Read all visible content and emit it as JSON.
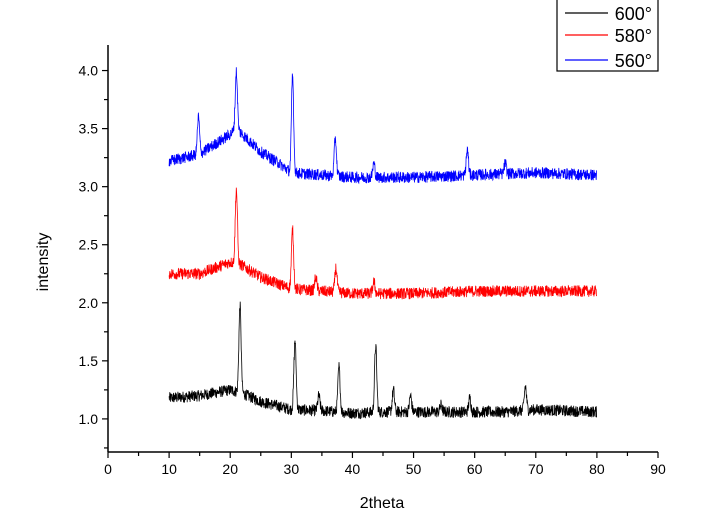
{
  "chart_data": {
    "type": "line",
    "title": "",
    "xlabel": "2theta",
    "ylabel": "intensity",
    "xlim": [
      0,
      90
    ],
    "ylim": [
      0.715,
      4.22
    ],
    "xticks": [
      "0",
      "10",
      "20",
      "30",
      "40",
      "50",
      "60",
      "70",
      "80",
      "90"
    ],
    "yticks": [
      "1.0",
      "1.5",
      "2.0",
      "2.5",
      "3.0",
      "3.5",
      "4.0"
    ],
    "legend_position": "top-right",
    "x_range_data": [
      10,
      80
    ],
    "series": [
      {
        "name": "600°",
        "color": "#000000",
        "baseline": [
          [
            10,
            1.18
          ],
          [
            15,
            1.2
          ],
          [
            20,
            1.25
          ],
          [
            22,
            1.22
          ],
          [
            25,
            1.15
          ],
          [
            30,
            1.08
          ],
          [
            35,
            1.07
          ],
          [
            40,
            1.05
          ],
          [
            45,
            1.06
          ],
          [
            50,
            1.06
          ],
          [
            60,
            1.06
          ],
          [
            65,
            1.06
          ],
          [
            70,
            1.08
          ],
          [
            75,
            1.07
          ],
          [
            80,
            1.06
          ]
        ],
        "peaks": [
          [
            21.6,
            1.98
          ],
          [
            30.6,
            1.68
          ],
          [
            34.5,
            1.2
          ],
          [
            37.8,
            1.45
          ],
          [
            43.8,
            1.63
          ],
          [
            46.7,
            1.25
          ],
          [
            49.5,
            1.2
          ],
          [
            54.5,
            1.12
          ],
          [
            59.2,
            1.18
          ],
          [
            68.3,
            1.28
          ]
        ]
      },
      {
        "name": "580°",
        "color": "#ff0000",
        "baseline": [
          [
            10,
            2.25
          ],
          [
            15,
            2.25
          ],
          [
            20,
            2.35
          ],
          [
            22,
            2.32
          ],
          [
            25,
            2.22
          ],
          [
            30,
            2.12
          ],
          [
            35,
            2.1
          ],
          [
            40,
            2.08
          ],
          [
            50,
            2.08
          ],
          [
            60,
            2.1
          ],
          [
            70,
            2.1
          ],
          [
            80,
            2.1
          ]
        ],
        "peaks": [
          [
            21.0,
            2.98
          ],
          [
            30.2,
            2.63
          ],
          [
            34.0,
            2.22
          ],
          [
            37.3,
            2.3
          ],
          [
            43.5,
            2.18
          ]
        ]
      },
      {
        "name": "560°",
        "color": "#0000ff",
        "baseline": [
          [
            10,
            3.22
          ],
          [
            15,
            3.28
          ],
          [
            20,
            3.45
          ],
          [
            21,
            3.5
          ],
          [
            25,
            3.3
          ],
          [
            28,
            3.2
          ],
          [
            30,
            3.12
          ],
          [
            35,
            3.1
          ],
          [
            40,
            3.08
          ],
          [
            50,
            3.08
          ],
          [
            60,
            3.1
          ],
          [
            70,
            3.12
          ],
          [
            80,
            3.1
          ]
        ],
        "peaks": [
          [
            14.8,
            3.6
          ],
          [
            21.0,
            3.99
          ],
          [
            30.2,
            3.96
          ],
          [
            37.2,
            3.42
          ],
          [
            43.5,
            3.2
          ],
          [
            58.8,
            3.32
          ],
          [
            65.0,
            3.2
          ]
        ]
      }
    ]
  }
}
